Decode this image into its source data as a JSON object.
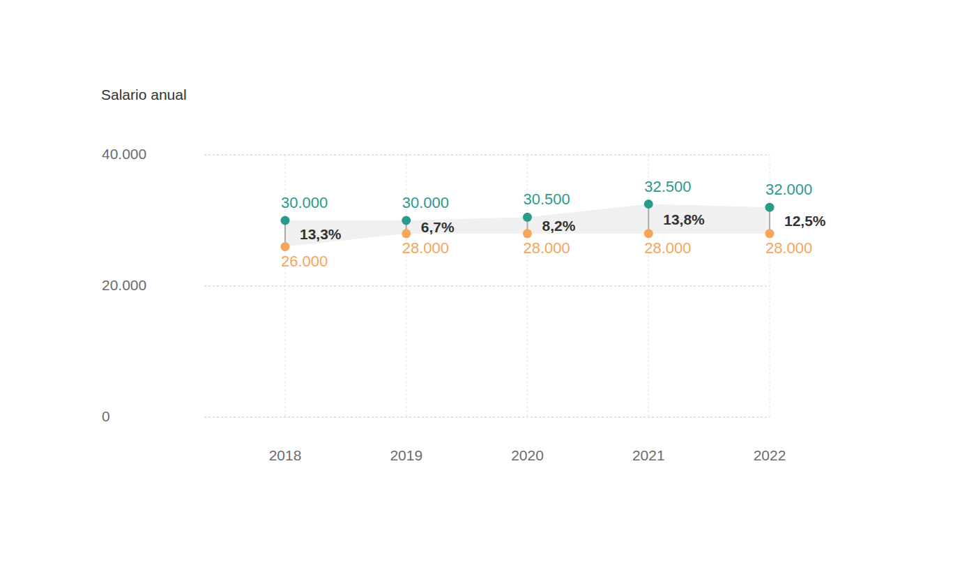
{
  "chart_data": {
    "type": "dumbbell",
    "y_label": "Salario anual",
    "categories": [
      "2018",
      "2019",
      "2020",
      "2021",
      "2022"
    ],
    "series": [
      {
        "color": "#2a9a8c",
        "values": [
          30000,
          30000,
          30500,
          32500,
          32000
        ],
        "value_labels": [
          "30.000",
          "30.000",
          "30.500",
          "32.500",
          "32.000"
        ]
      },
      {
        "color": "#f6a55b",
        "values": [
          26000,
          28000,
          28000,
          28000,
          28000
        ],
        "value_labels": [
          "26.000",
          "28.000",
          "28.000",
          "28.000",
          "28.000"
        ]
      }
    ],
    "gap_values": [
      13.3,
      6.7,
      8.2,
      13.8,
      12.5
    ],
    "gap_labels": [
      "13,3%",
      "6,7%",
      "8,2%",
      "13,8%",
      "12,5%"
    ],
    "ylim": [
      0,
      40000
    ],
    "yticks": [
      0,
      {
        "value": 20000,
        "label": "20.000"
      },
      {
        "value": 40000,
        "label": "40.000"
      }
    ],
    "grid": true,
    "data_labels": true
  }
}
